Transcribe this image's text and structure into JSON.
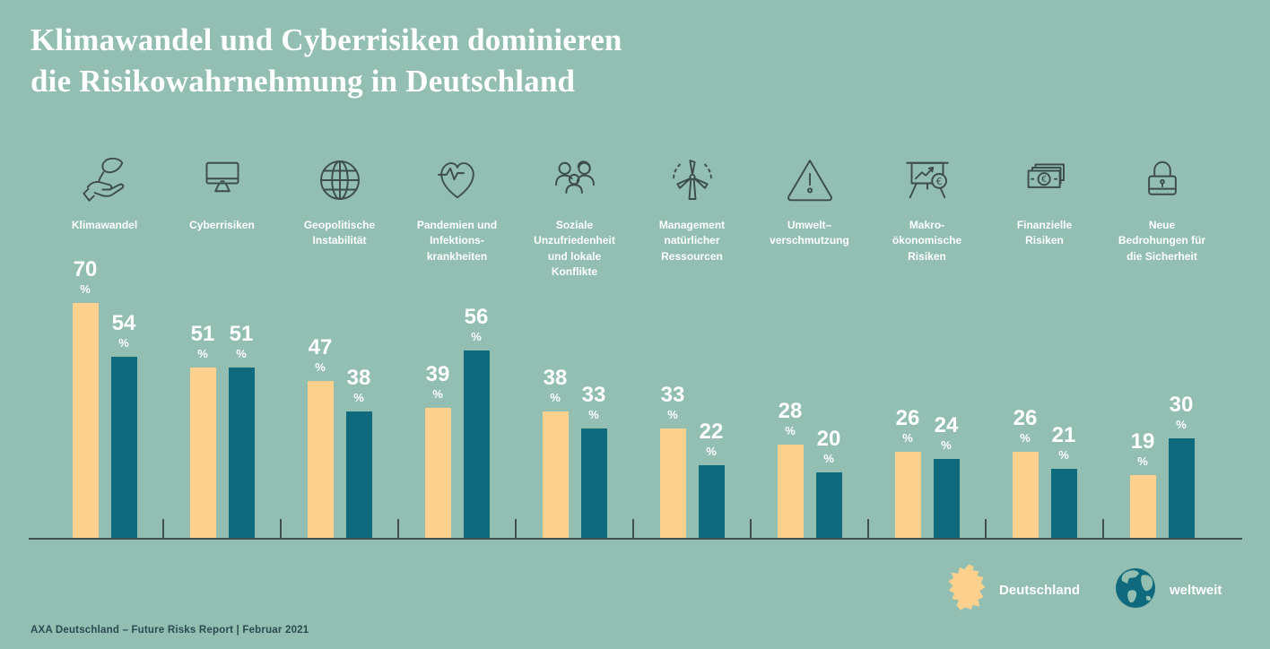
{
  "page": {
    "background_color": "#93bfb2"
  },
  "header": {
    "line1": "Klimawandel und Cyberrisiken dominieren",
    "line2": "die Risikowahrnehmung in Deutschland",
    "text_color": "#ffffff"
  },
  "footer": {
    "text": "AXA Deutschland – Future Risks Report  |  Februar 2021"
  },
  "legend": {
    "position": "bottom-right",
    "items": [
      {
        "label": "Deutschland",
        "icon": "germany-map-icon",
        "color": "#fcd18e"
      },
      {
        "label": "weltweit",
        "icon": "globe-icon",
        "color": "#0f6a7d"
      }
    ]
  },
  "colors": {
    "background": "#93bfb2",
    "bar_deutschland": "#fcd18e",
    "bar_weltweit": "#0f6a7d",
    "icon_stroke": "#3d4d4b",
    "axis": "#40504d",
    "footer_text": "#2b4a50"
  },
  "chart_data": {
    "type": "bar",
    "title": "Klimawandel und Cyberrisiken dominieren die Risikowahrnehmung in Deutschland",
    "unit": "%",
    "ylim": [
      0,
      75
    ],
    "grid": false,
    "legend_position": "bottom-right",
    "categories": [
      {
        "name": "Klimawandel",
        "icon": "hand-leaf",
        "label_lines": [
          "Klimawandel"
        ]
      },
      {
        "name": "Cyberrisiken",
        "icon": "monitor",
        "label_lines": [
          "Cyberrisiken"
        ]
      },
      {
        "name": "Geopolitische Instabilität",
        "icon": "globe-grid",
        "label_lines": [
          "Geopolitische",
          "Instabilität"
        ]
      },
      {
        "name": "Pandemien und Infektionskrankheiten",
        "icon": "heart-pulse",
        "label_lines": [
          "Pandemien und",
          "Infektions-",
          "krankheiten"
        ]
      },
      {
        "name": "Soziale Unzufriedenheit und lokale Konflikte",
        "icon": "people-group",
        "label_lines": [
          "Soziale",
          "Unzufriedenheit",
          "und lokale",
          "Konflikte"
        ]
      },
      {
        "name": "Management natürlicher Ressourcen",
        "icon": "wind-turbine",
        "label_lines": [
          "Management",
          "natürlicher",
          "Ressourcen"
        ]
      },
      {
        "name": "Umweltverschmutzung",
        "icon": "warning-triangle",
        "label_lines": [
          "Umwelt–",
          "verschmutzung"
        ]
      },
      {
        "name": "Makroökonomische Risiken",
        "icon": "chart-easel-euro",
        "label_lines": [
          "Makro-",
          "ökonomische",
          "Risiken"
        ]
      },
      {
        "name": "Finanzielle Risiken",
        "icon": "banknotes-euro",
        "label_lines": [
          "Finanzielle",
          "Risiken"
        ]
      },
      {
        "name": "Neue Bedrohungen für die Sicherheit",
        "icon": "padlock",
        "label_lines": [
          "Neue",
          "Bedrohungen für",
          "die Sicherheit"
        ]
      }
    ],
    "series": [
      {
        "name": "Deutschland",
        "color": "#fcd18e",
        "values": [
          70,
          51,
          47,
          39,
          38,
          33,
          28,
          26,
          26,
          19
        ]
      },
      {
        "name": "weltweit",
        "color": "#0f6a7d",
        "values": [
          54,
          51,
          38,
          56,
          33,
          22,
          20,
          24,
          21,
          30
        ]
      }
    ]
  }
}
